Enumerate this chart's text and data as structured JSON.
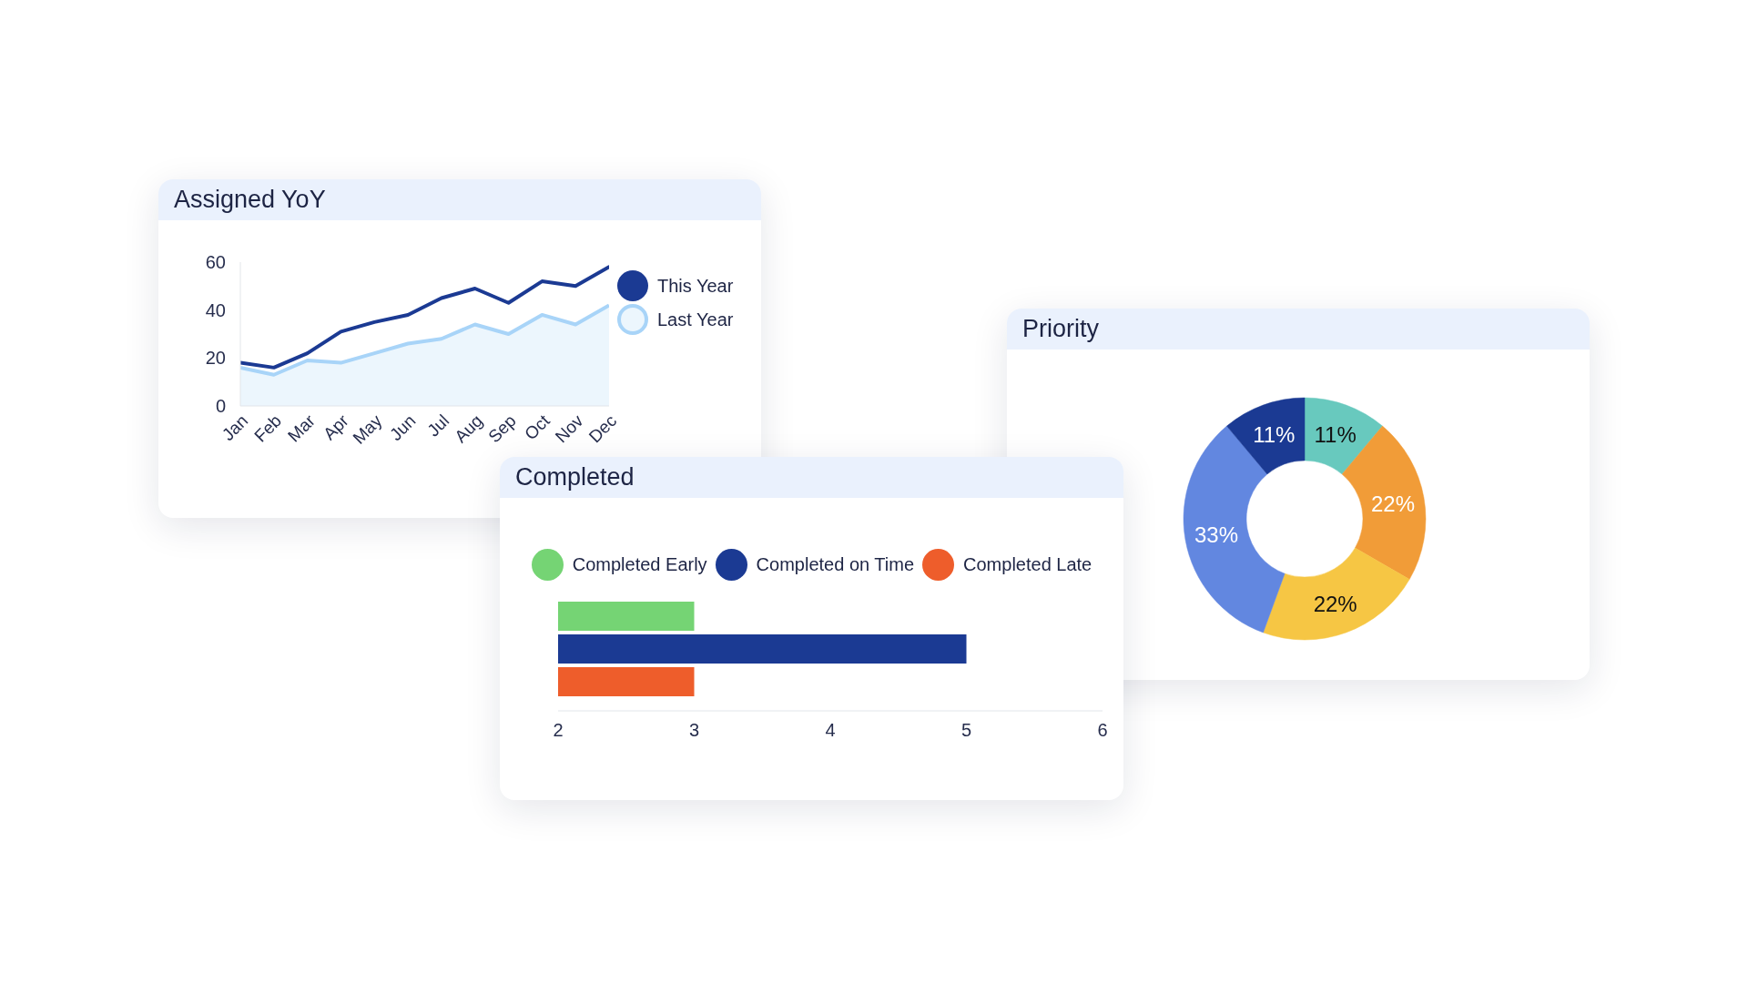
{
  "chart_data": [
    {
      "type": "line",
      "title": "Assigned YoY",
      "categories": [
        "Jan",
        "Feb",
        "Mar",
        "Apr",
        "May",
        "Jun",
        "Jul",
        "Aug",
        "Sep",
        "Oct",
        "Nov",
        "Dec"
      ],
      "series": [
        {
          "name": "This Year",
          "type": "line",
          "color": "#1b3a93",
          "values": [
            18,
            16,
            22,
            31,
            35,
            38,
            45,
            49,
            43,
            52,
            50,
            58
          ]
        },
        {
          "name": "Last Year",
          "type": "area",
          "color": "#a8d4f8",
          "values": [
            16,
            13,
            19,
            18,
            22,
            26,
            28,
            34,
            30,
            38,
            34,
            42
          ]
        }
      ],
      "ylim": [
        0,
        60
      ],
      "yticks": [
        0,
        20,
        40,
        60
      ],
      "legend": "top right",
      "grid": false,
      "marker": "none"
    },
    {
      "type": "donut",
      "title": "Priority",
      "categories": [
        null,
        null,
        null,
        null,
        null
      ],
      "values": [
        11,
        22,
        22,
        33,
        11
      ],
      "colors": [
        "#68c9be",
        "#f19c38",
        "#f6c644",
        "#6287e0",
        "#1b3a93"
      ],
      "value_labels": [
        "11%",
        "22%",
        "22%",
        "33%",
        "11%"
      ]
    },
    {
      "type": "bar",
      "title": "Completed",
      "orientation": "horizontal",
      "categories": [
        null
      ],
      "series": [
        {
          "name": "Completed Early",
          "color": "#75d474",
          "values": [
            3
          ]
        },
        {
          "name": "Completed on Time",
          "color": "#1b3a93",
          "values": [
            5
          ]
        },
        {
          "name": "Completed Late",
          "color": "#ee5d2b",
          "values": [
            3
          ]
        }
      ],
      "xlim": [
        2,
        6
      ],
      "xticks": [
        2,
        3,
        4,
        5,
        6
      ],
      "legend": "top",
      "grid": false,
      "tick_labels": "x"
    }
  ]
}
